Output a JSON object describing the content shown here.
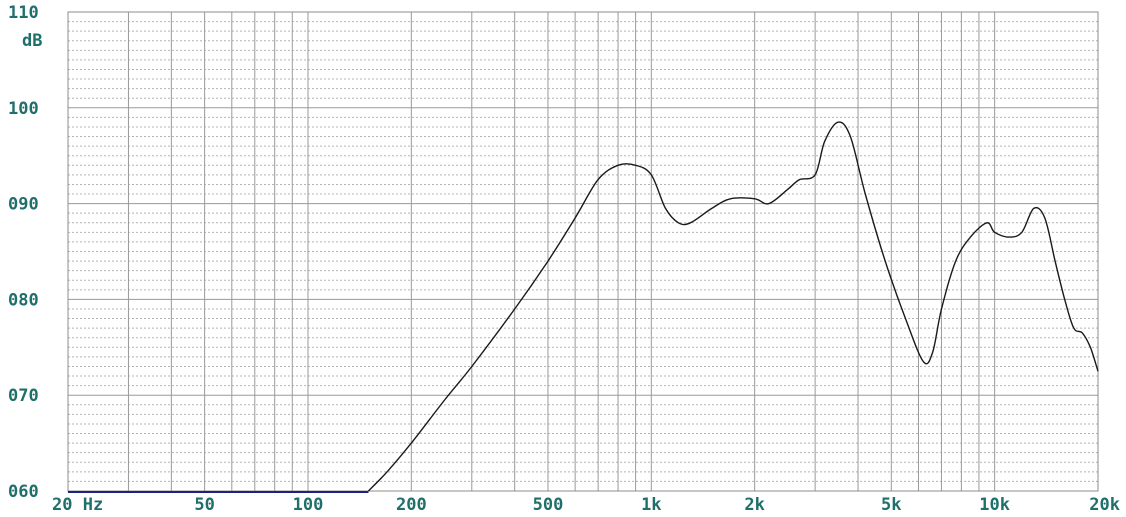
{
  "chart_data": {
    "type": "line",
    "xscale": "log",
    "xlim": [
      20,
      20000
    ],
    "ylim": [
      60,
      110
    ],
    "yunit": "dB",
    "y_ticks": [
      {
        "value": 110,
        "label": "110"
      },
      {
        "value": 100,
        "label": "100"
      },
      {
        "value": 90,
        "label": "090"
      },
      {
        "value": 80,
        "label": "080"
      },
      {
        "value": 70,
        "label": "070"
      },
      {
        "value": 60,
        "label": "060"
      }
    ],
    "x_ticks": [
      {
        "value": 20,
        "label": "20 Hz"
      },
      {
        "value": 50,
        "label": "50"
      },
      {
        "value": 100,
        "label": "100"
      },
      {
        "value": 200,
        "label": "200"
      },
      {
        "value": 500,
        "label": "500"
      },
      {
        "value": 1000,
        "label": "1k"
      },
      {
        "value": 2000,
        "label": "2k"
      },
      {
        "value": 5000,
        "label": "5k"
      },
      {
        "value": 10000,
        "label": "10k"
      },
      {
        "value": 20000,
        "label": "20k"
      }
    ],
    "grid": true,
    "series": [
      {
        "color": "#1a1a1a",
        "x": [
          150,
          170,
          200,
          250,
          300,
          400,
          500,
          600,
          700,
          800,
          900,
          1000,
          1100,
          1200,
          1300,
          1500,
          1700,
          2000,
          2200,
          2500,
          2700,
          3000,
          3200,
          3500,
          3800,
          4200,
          4800,
          5500,
          6200,
          6600,
          7000,
          7700,
          8500,
          9500,
          10000,
          11000,
          12000,
          13000,
          14000,
          15000,
          16000,
          17000,
          18000,
          19000,
          20000
        ],
        "y": [
          60,
          62,
          65,
          69.5,
          73,
          79,
          84,
          88.5,
          92.5,
          94,
          94,
          93,
          89.5,
          88,
          88,
          89.5,
          90.5,
          90.5,
          90,
          91.5,
          92.5,
          93,
          96.5,
          98.5,
          97,
          91,
          84,
          78,
          73.5,
          74.5,
          79,
          84,
          86.5,
          88,
          87,
          86.5,
          87,
          89.5,
          88.5,
          84,
          80,
          77,
          76.5,
          75,
          72.5
        ]
      }
    ],
    "baseline": {
      "color": "#1a237e",
      "x": [
        20,
        150
      ],
      "y": [
        60,
        60
      ]
    }
  }
}
